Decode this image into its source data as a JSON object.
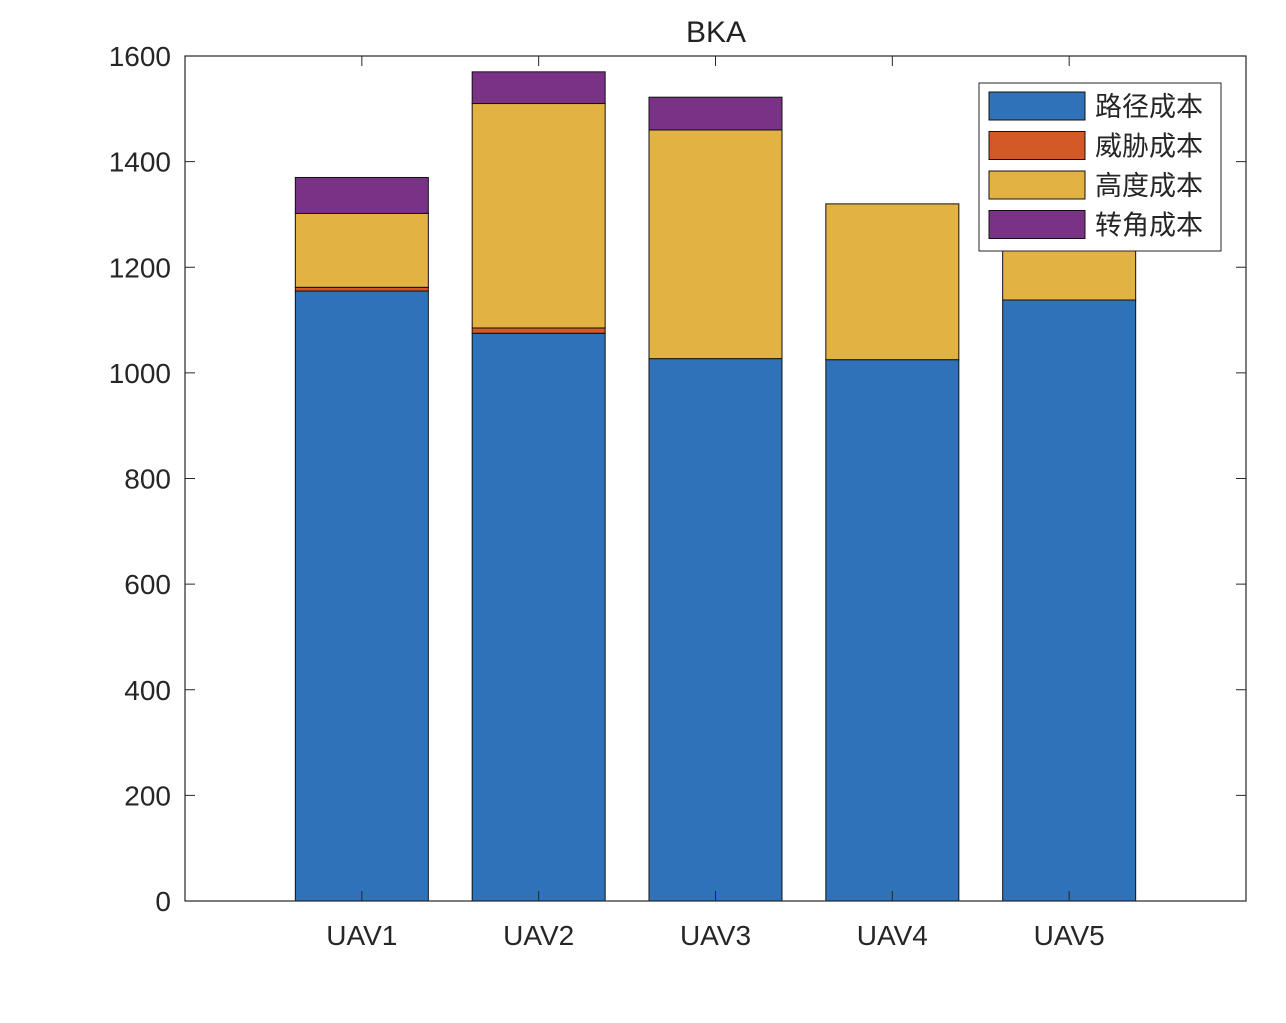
{
  "chart_data": {
    "type": "bar",
    "stacked": true,
    "title": "BKA",
    "xlabel": "",
    "ylabel": "",
    "categories": [
      "UAV1",
      "UAV2",
      "UAV3",
      "UAV4",
      "UAV5"
    ],
    "ylim": [
      0,
      1600
    ],
    "yticks": [
      0,
      200,
      400,
      600,
      800,
      1000,
      1200,
      1400,
      1600
    ],
    "grid": false,
    "legend_position": "top-right",
    "series": [
      {
        "name": "路径成本",
        "color": "#3072B9",
        "values": [
          1155,
          1075,
          1027,
          1025,
          1138
        ]
      },
      {
        "name": "威胁成本",
        "color": "#D35A26",
        "values": [
          7,
          10,
          0,
          0,
          0
        ]
      },
      {
        "name": "高度成本",
        "color": "#E2B243",
        "values": [
          140,
          425,
          433,
          295,
          130
        ]
      },
      {
        "name": "转角成本",
        "color": "#7A3287",
        "values": [
          68,
          60,
          62,
          0,
          0
        ]
      }
    ]
  }
}
